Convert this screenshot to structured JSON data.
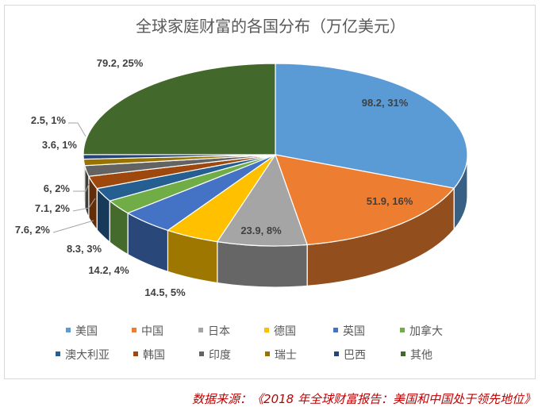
{
  "chart_data": {
    "type": "pie",
    "style": "3d",
    "title": "全球家庭财富的各国分布（万亿美元）",
    "categories": [
      "美国",
      "中国",
      "日本",
      "德国",
      "英国",
      "加拿大",
      "澳大利亚",
      "韩国",
      "印度",
      "瑞士",
      "巴西",
      "其他"
    ],
    "values": [
      98.2,
      51.9,
      23.9,
      14.5,
      14.2,
      8.3,
      7.6,
      7.1,
      6,
      3.6,
      2.5,
      79.2
    ],
    "data_labels": [
      "98.2, 31%",
      "51.9, 16%",
      "23.9, 8%",
      "14.5, 5%",
      "14.2, 4%",
      "8.3, 3%",
      "7.6, 2%",
      "7.1, 2%",
      "6, 2%",
      "3.6, 1%",
      "2.5, 1%",
      "79.2, 25%"
    ],
    "colors": [
      "#5B9BD5",
      "#ED7D31",
      "#A5A5A5",
      "#FFC000",
      "#4472C4",
      "#70AD47",
      "#255E91",
      "#9E480E",
      "#636363",
      "#997300",
      "#264478",
      "#43682B"
    ],
    "legend_position": "bottom"
  },
  "source": "数据来源：《2018 年全球财富报告：美国和中国处于领先地位》"
}
